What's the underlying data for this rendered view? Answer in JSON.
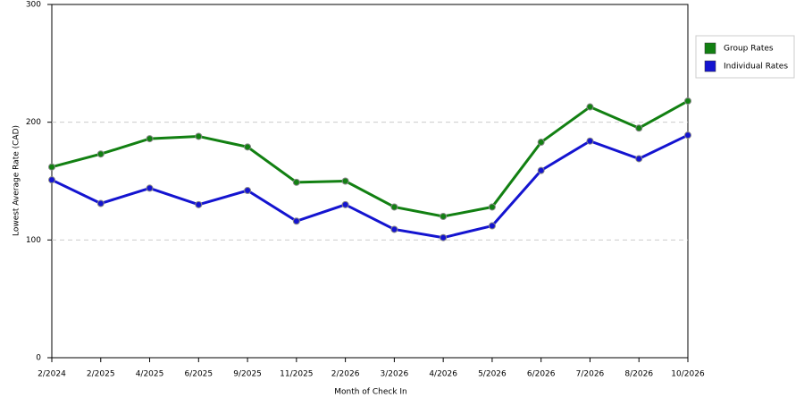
{
  "chart_data": {
    "type": "line",
    "x_label": "Month of Check In",
    "y_label": "Lowest Average Rate (CAD)",
    "categories": [
      "2/2024",
      "2/2025",
      "4/2025",
      "6/2025",
      "9/2025",
      "11/2025",
      "2/2026",
      "3/2026",
      "4/2026",
      "5/2026",
      "6/2026",
      "7/2026",
      "8/2026",
      "10/2026"
    ],
    "series": [
      {
        "name": "Group Rates",
        "color": "#128012",
        "values": [
          162,
          173,
          186,
          188,
          179,
          149,
          150,
          128,
          120,
          128,
          183,
          213,
          195,
          218
        ]
      },
      {
        "name": "Individual Rates",
        "color": "#1414d0",
        "values": [
          151,
          131,
          144,
          130,
          142,
          116,
          130,
          109,
          102,
          112,
          159,
          184,
          169,
          189
        ]
      }
    ],
    "ylim": [
      0,
      300
    ],
    "yticks": [
      0,
      100,
      200,
      300
    ],
    "grid": true,
    "legend": "right"
  }
}
